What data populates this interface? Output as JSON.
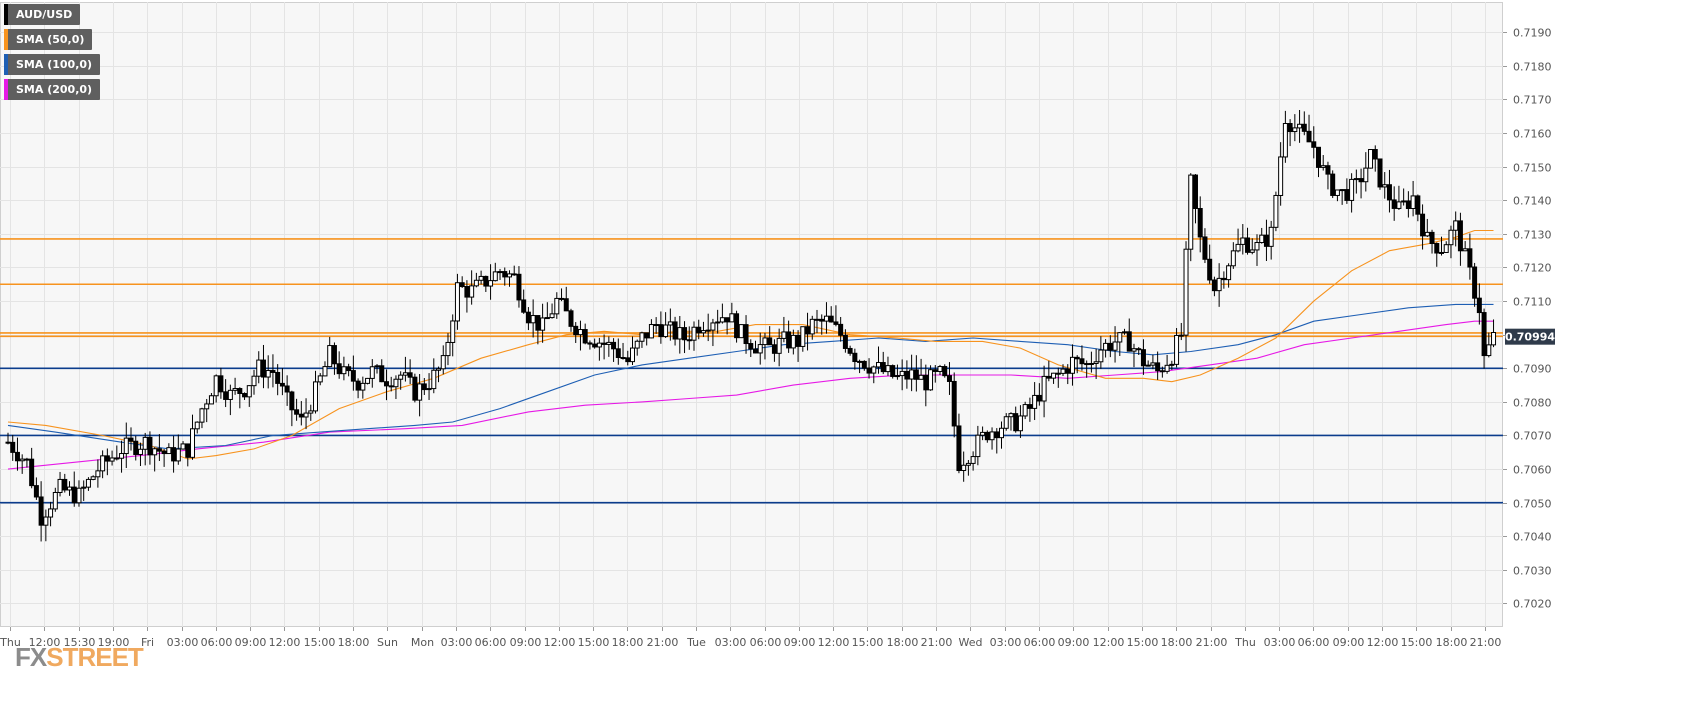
{
  "colors": {
    "background": "#ffffff",
    "plot_bg": "#f7f7f7",
    "grid": "#e4e4e4",
    "candle": "#000000",
    "sma50": "#f7931e",
    "sma100": "#1e5fb4",
    "sma200": "#e619e6",
    "resistance": "#f7931e",
    "support": "#0b3c8c",
    "price_tag_bg": "#2f3b4b",
    "axis_text": "#555555"
  },
  "legend": [
    {
      "label": "AUD/USD",
      "color": "#000000"
    },
    {
      "label": "SMA (50,0)",
      "color": "#f7931e"
    },
    {
      "label": "SMA (100,0)",
      "color": "#1e5fb4"
    },
    {
      "label": "SMA (200,0)",
      "color": "#e619e6"
    }
  ],
  "logo": {
    "part1": "FX",
    "part2": "STREET"
  },
  "chart_data": {
    "type": "candlestick",
    "symbol": "AUD/USD",
    "ylim": [
      0.7013,
      0.7199
    ],
    "y_ticks": [
      "0.7020",
      "0.7030",
      "0.7040",
      "0.7050",
      "0.7060",
      "0.7070",
      "0.7080",
      "0.7090",
      "0.7100",
      "0.7110",
      "0.7120",
      "0.7130",
      "0.7140",
      "0.7150",
      "0.7160",
      "0.7170",
      "0.7180",
      "0.7190"
    ],
    "x_ticks": [
      "Thu",
      "12:00",
      "15:30",
      "19:00",
      "Fri",
      "03:00",
      "06:00",
      "09:00",
      "12:00",
      "15:00",
      "18:00",
      "Sun",
      "Mon",
      "03:00",
      "06:00",
      "09:00",
      "12:00",
      "15:00",
      "18:00",
      "21:00",
      "Tue",
      "03:00",
      "06:00",
      "09:00",
      "12:00",
      "15:00",
      "18:00",
      "21:00",
      "Wed",
      "03:00",
      "06:00",
      "09:00",
      "12:00",
      "15:00",
      "18:00",
      "21:00",
      "Thu",
      "03:00",
      "06:00",
      "09:00",
      "12:00",
      "15:00",
      "18:00",
      "21:00"
    ],
    "current_price": "0.70994",
    "resistance_levels": [
      0.71285,
      0.7115,
      0.71005,
      0.70995
    ],
    "support_levels": [
      0.709,
      0.707,
      0.705
    ],
    "price_path": [
      [
        0,
        0.7068
      ],
      [
        4,
        0.7062
      ],
      [
        7,
        0.7046
      ],
      [
        11,
        0.7054
      ],
      [
        15,
        0.7052
      ],
      [
        19,
        0.706
      ],
      [
        24,
        0.7066
      ],
      [
        29,
        0.7068
      ],
      [
        34,
        0.7064
      ],
      [
        38,
        0.7066
      ],
      [
        41,
        0.7078
      ],
      [
        44,
        0.7087
      ],
      [
        47,
        0.7082
      ],
      [
        50,
        0.7084
      ],
      [
        53,
        0.709
      ],
      [
        56,
        0.7089
      ],
      [
        59,
        0.708
      ],
      [
        62,
        0.7074
      ],
      [
        65,
        0.7083
      ],
      [
        68,
        0.7094
      ],
      [
        71,
        0.7088
      ],
      [
        74,
        0.7086
      ],
      [
        77,
        0.7089
      ],
      [
        80,
        0.7087
      ],
      [
        83,
        0.7088
      ],
      [
        86,
        0.7083
      ],
      [
        89,
        0.7086
      ],
      [
        92,
        0.7091
      ],
      [
        95,
        0.7114
      ],
      [
        98,
        0.7113
      ],
      [
        101,
        0.7116
      ],
      [
        104,
        0.7119
      ],
      [
        107,
        0.7117
      ],
      [
        110,
        0.7106
      ],
      [
        113,
        0.7102
      ],
      [
        116,
        0.711
      ],
      [
        119,
        0.7104
      ],
      [
        122,
        0.71
      ],
      [
        125,
        0.7098
      ],
      [
        128,
        0.7096
      ],
      [
        131,
        0.7092
      ],
      [
        134,
        0.7099
      ],
      [
        137,
        0.7103
      ],
      [
        140,
        0.7101
      ],
      [
        143,
        0.7099
      ],
      [
        146,
        0.7103
      ],
      [
        149,
        0.7105
      ],
      [
        152,
        0.7106
      ],
      [
        155,
        0.71
      ],
      [
        158,
        0.7097
      ],
      [
        161,
        0.7096
      ],
      [
        164,
        0.7098
      ],
      [
        167,
        0.7098
      ],
      [
        170,
        0.7103
      ],
      [
        173,
        0.7104
      ],
      [
        176,
        0.71
      ],
      [
        179,
        0.7094
      ],
      [
        182,
        0.7091
      ],
      [
        185,
        0.7089
      ],
      [
        188,
        0.7087
      ],
      [
        191,
        0.7088
      ],
      [
        194,
        0.7086
      ],
      [
        197,
        0.7088
      ],
      [
        199,
        0.7084
      ],
      [
        201,
        0.7062
      ],
      [
        204,
        0.7066
      ],
      [
        207,
        0.7071
      ],
      [
        210,
        0.7073
      ],
      [
        213,
        0.7074
      ],
      [
        216,
        0.7078
      ],
      [
        219,
        0.7085
      ],
      [
        222,
        0.7088
      ],
      [
        225,
        0.7092
      ],
      [
        228,
        0.7091
      ],
      [
        231,
        0.7096
      ],
      [
        234,
        0.7098
      ],
      [
        237,
        0.7098
      ],
      [
        240,
        0.7092
      ],
      [
        243,
        0.7089
      ],
      [
        246,
        0.7094
      ],
      [
        248,
        0.71
      ],
      [
        250,
        0.7145
      ],
      [
        252,
        0.7128
      ],
      [
        255,
        0.7114
      ],
      [
        258,
        0.7122
      ],
      [
        261,
        0.7128
      ],
      [
        264,
        0.7126
      ],
      [
        267,
        0.713
      ],
      [
        270,
        0.7165
      ],
      [
        273,
        0.716
      ],
      [
        276,
        0.7156
      ],
      [
        279,
        0.7145
      ],
      [
        282,
        0.7142
      ],
      [
        285,
        0.7144
      ],
      [
        288,
        0.7153
      ],
      [
        291,
        0.7143
      ],
      [
        294,
        0.7137
      ],
      [
        297,
        0.7141
      ],
      [
        300,
        0.7128
      ],
      [
        303,
        0.7126
      ],
      [
        306,
        0.7132
      ],
      [
        309,
        0.7118
      ],
      [
        311,
        0.7108
      ],
      [
        312,
        0.7093
      ],
      [
        314,
        0.7099
      ]
    ],
    "sma50": [
      [
        0,
        0.7074
      ],
      [
        8,
        0.7073
      ],
      [
        20,
        0.707
      ],
      [
        30,
        0.7067
      ],
      [
        38,
        0.7063
      ],
      [
        44,
        0.7064
      ],
      [
        52,
        0.7066
      ],
      [
        60,
        0.707
      ],
      [
        70,
        0.7078
      ],
      [
        80,
        0.7083
      ],
      [
        90,
        0.7087
      ],
      [
        100,
        0.7093
      ],
      [
        110,
        0.7097
      ],
      [
        118,
        0.71
      ],
      [
        126,
        0.7101
      ],
      [
        134,
        0.71
      ],
      [
        142,
        0.7101
      ],
      [
        150,
        0.7101
      ],
      [
        158,
        0.7103
      ],
      [
        168,
        0.7103
      ],
      [
        178,
        0.71
      ],
      [
        188,
        0.7099
      ],
      [
        196,
        0.7098
      ],
      [
        206,
        0.7098
      ],
      [
        214,
        0.7096
      ],
      [
        222,
        0.7091
      ],
      [
        232,
        0.7087
      ],
      [
        240,
        0.7087
      ],
      [
        246,
        0.7086
      ],
      [
        252,
        0.7088
      ],
      [
        260,
        0.7093
      ],
      [
        268,
        0.7099
      ],
      [
        276,
        0.711
      ],
      [
        284,
        0.7119
      ],
      [
        292,
        0.7125
      ],
      [
        300,
        0.7127
      ],
      [
        306,
        0.7129
      ],
      [
        310,
        0.7131
      ],
      [
        314,
        0.7131
      ]
    ],
    "sma100": [
      [
        0,
        0.7073
      ],
      [
        10,
        0.7071
      ],
      [
        24,
        0.7068
      ],
      [
        34,
        0.7066
      ],
      [
        46,
        0.7067
      ],
      [
        56,
        0.707
      ],
      [
        66,
        0.7071
      ],
      [
        76,
        0.7072
      ],
      [
        86,
        0.7073
      ],
      [
        94,
        0.7074
      ],
      [
        104,
        0.7078
      ],
      [
        114,
        0.7083
      ],
      [
        124,
        0.7088
      ],
      [
        134,
        0.7091
      ],
      [
        144,
        0.7093
      ],
      [
        154,
        0.7095
      ],
      [
        164,
        0.7097
      ],
      [
        174,
        0.7098
      ],
      [
        184,
        0.7099
      ],
      [
        194,
        0.7098
      ],
      [
        204,
        0.7099
      ],
      [
        214,
        0.7098
      ],
      [
        224,
        0.7097
      ],
      [
        234,
        0.7095
      ],
      [
        242,
        0.7094
      ],
      [
        250,
        0.7095
      ],
      [
        260,
        0.7097
      ],
      [
        268,
        0.71
      ],
      [
        276,
        0.7104
      ],
      [
        286,
        0.7106
      ],
      [
        296,
        0.7108
      ],
      [
        306,
        0.7109
      ],
      [
        314,
        0.7109
      ]
    ],
    "sma200": [
      [
        0,
        0.706
      ],
      [
        14,
        0.7062
      ],
      [
        28,
        0.7064
      ],
      [
        40,
        0.7066
      ],
      [
        54,
        0.7068
      ],
      [
        68,
        0.7071
      ],
      [
        84,
        0.7072
      ],
      [
        96,
        0.7073
      ],
      [
        110,
        0.7077
      ],
      [
        122,
        0.7079
      ],
      [
        134,
        0.708
      ],
      [
        144,
        0.7081
      ],
      [
        154,
        0.7082
      ],
      [
        166,
        0.7085
      ],
      [
        178,
        0.7087
      ],
      [
        190,
        0.7088
      ],
      [
        200,
        0.7088
      ],
      [
        212,
        0.7088
      ],
      [
        224,
        0.7087
      ],
      [
        234,
        0.7088
      ],
      [
        244,
        0.7089
      ],
      [
        254,
        0.7091
      ],
      [
        264,
        0.7093
      ],
      [
        274,
        0.7097
      ],
      [
        284,
        0.7099
      ],
      [
        294,
        0.7101
      ],
      [
        304,
        0.7103
      ],
      [
        310,
        0.7104
      ],
      [
        314,
        0.7104
      ]
    ]
  }
}
